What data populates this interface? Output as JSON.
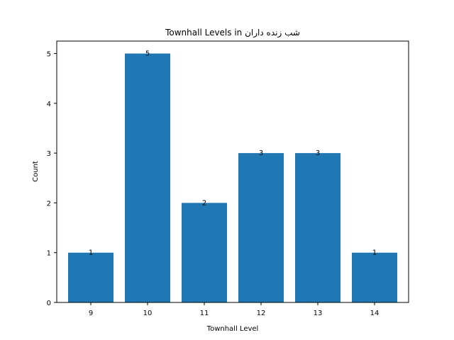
{
  "chart_data": {
    "type": "bar",
    "title": "Townhall Levels in شب زنده داران",
    "xlabel": "Townhall Level",
    "ylabel": "Count",
    "categories": [
      "9",
      "10",
      "11",
      "12",
      "13",
      "14"
    ],
    "values": [
      1,
      5,
      2,
      3,
      3,
      1
    ],
    "data_labels": [
      "1",
      "5",
      "2",
      "3",
      "3",
      "1"
    ],
    "yticks": [
      "0",
      "1",
      "2",
      "3",
      "4",
      "5"
    ],
    "ylim": [
      0,
      5.25
    ],
    "bar_color": "#1f77b4",
    "grid": false,
    "legend": "none"
  }
}
